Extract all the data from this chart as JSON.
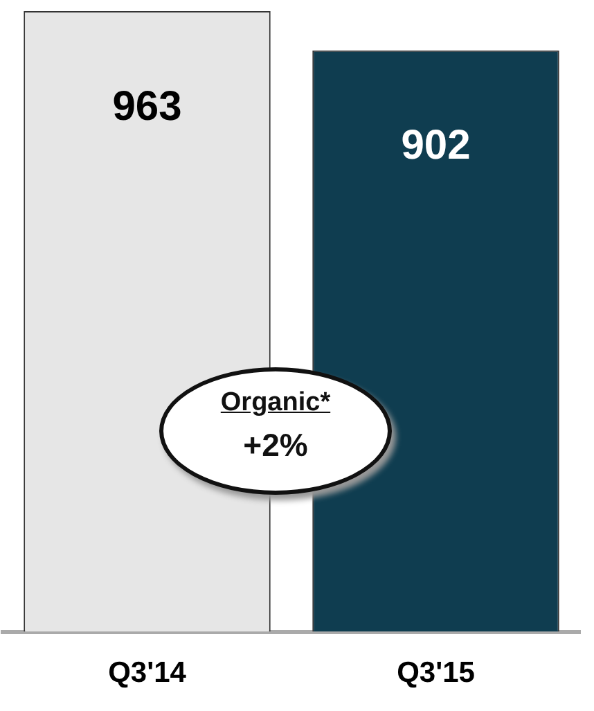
{
  "chart_data": {
    "type": "bar",
    "categories": [
      "Q3'14",
      "Q3'15"
    ],
    "values": [
      963,
      902
    ],
    "colors": [
      "#e6e6e6",
      "#0f3d50"
    ],
    "data_labels": true,
    "annotations": [
      "Organic*",
      "+2%"
    ],
    "grid": false,
    "legend": false
  }
}
